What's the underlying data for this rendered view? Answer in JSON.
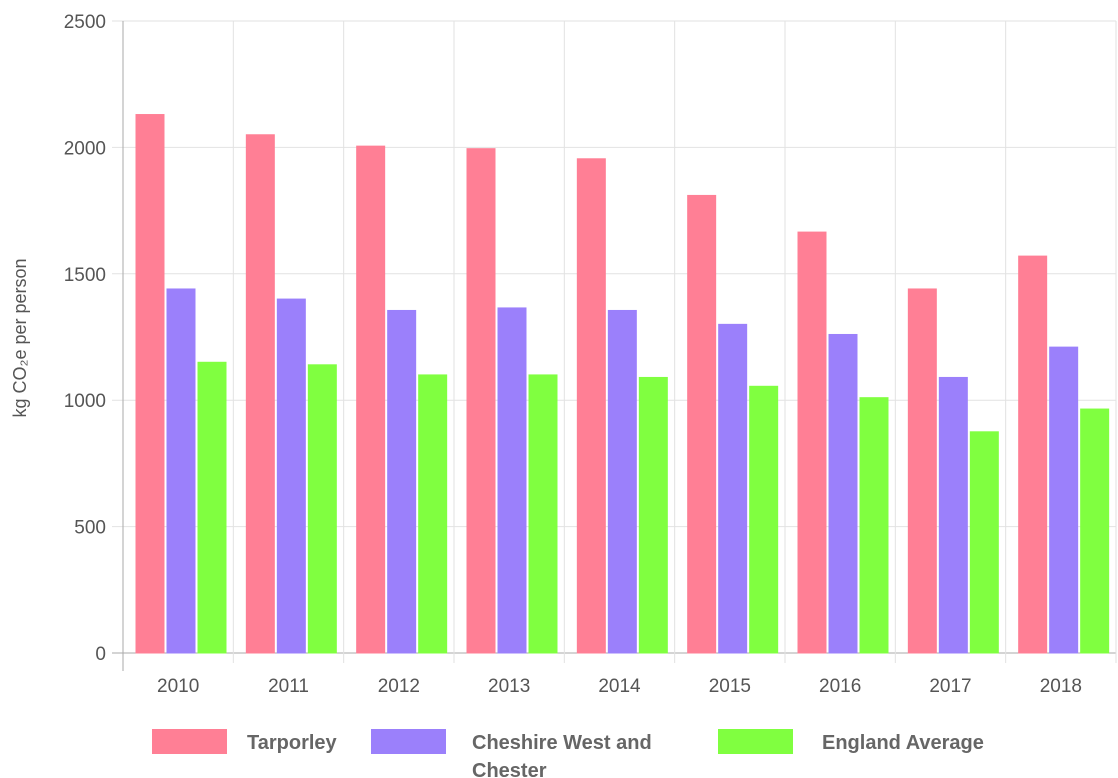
{
  "chart_data": {
    "type": "bar",
    "title": "",
    "xlabel": "",
    "ylabel": "kg CO₂e per person",
    "ylim": [
      0,
      2500
    ],
    "yticks": [
      0,
      500,
      1000,
      1500,
      2000,
      2500
    ],
    "categories": [
      "2010",
      "2011",
      "2012",
      "2013",
      "2014",
      "2015",
      "2016",
      "2017",
      "2018"
    ],
    "series": [
      {
        "name": "Tarporley",
        "color": "#ff7f95",
        "values": [
          2130,
          2050,
          2005,
          1995,
          1955,
          1810,
          1665,
          1440,
          1570
        ]
      },
      {
        "name": "Cheshire West and Chester",
        "color": "#9b80fb",
        "values": [
          1440,
          1400,
          1355,
          1365,
          1355,
          1300,
          1260,
          1090,
          1210
        ]
      },
      {
        "name": "England Average",
        "color": "#80ff40",
        "values": [
          1150,
          1140,
          1100,
          1100,
          1090,
          1055,
          1010,
          875,
          965
        ]
      }
    ],
    "legend_lines": [
      [
        "Tarporley"
      ],
      [
        "Cheshire West and",
        "Chester"
      ],
      [
        "England Average"
      ]
    ],
    "grid": true,
    "legend_position": "bottom"
  }
}
